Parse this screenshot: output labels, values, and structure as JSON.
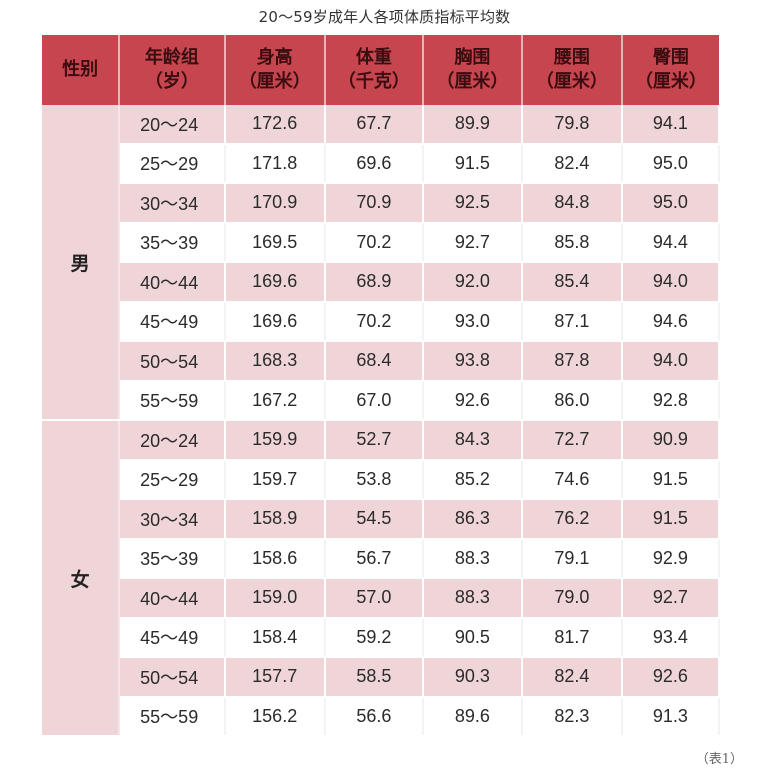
{
  "title": "20～59岁成年人各项体质指标平均数",
  "caption": "（表1）",
  "colors": {
    "header_bg": "#c6454e",
    "row_pink": "#efd4d8",
    "row_white": "#ffffff"
  },
  "headers": [
    {
      "line1": "性别",
      "line2": ""
    },
    {
      "line1": "年龄组",
      "line2": "（岁）"
    },
    {
      "line1": "身高",
      "line2": "（厘米）"
    },
    {
      "line1": "体重",
      "line2": "（千克）"
    },
    {
      "line1": "胸围",
      "line2": "（厘米）"
    },
    {
      "line1": "腰围",
      "line2": "（厘米）"
    },
    {
      "line1": "臀围",
      "line2": "（厘米）"
    }
  ],
  "groups": [
    {
      "gender": "男",
      "rows": [
        {
          "age": "20～24",
          "height": "172.6",
          "weight": "67.7",
          "chest": "89.9",
          "waist": "79.8",
          "hip": "94.1"
        },
        {
          "age": "25～29",
          "height": "171.8",
          "weight": "69.6",
          "chest": "91.5",
          "waist": "82.4",
          "hip": "95.0"
        },
        {
          "age": "30～34",
          "height": "170.9",
          "weight": "70.9",
          "chest": "92.5",
          "waist": "84.8",
          "hip": "95.0"
        },
        {
          "age": "35～39",
          "height": "169.5",
          "weight": "70.2",
          "chest": "92.7",
          "waist": "85.8",
          "hip": "94.4"
        },
        {
          "age": "40～44",
          "height": "169.6",
          "weight": "68.9",
          "chest": "92.0",
          "waist": "85.4",
          "hip": "94.0"
        },
        {
          "age": "45～49",
          "height": "169.6",
          "weight": "70.2",
          "chest": "93.0",
          "waist": "87.1",
          "hip": "94.6"
        },
        {
          "age": "50～54",
          "height": "168.3",
          "weight": "68.4",
          "chest": "93.8",
          "waist": "87.8",
          "hip": "94.0"
        },
        {
          "age": "55～59",
          "height": "167.2",
          "weight": "67.0",
          "chest": "92.6",
          "waist": "86.0",
          "hip": "92.8"
        }
      ]
    },
    {
      "gender": "女",
      "rows": [
        {
          "age": "20～24",
          "height": "159.9",
          "weight": "52.7",
          "chest": "84.3",
          "waist": "72.7",
          "hip": "90.9"
        },
        {
          "age": "25～29",
          "height": "159.7",
          "weight": "53.8",
          "chest": "85.2",
          "waist": "74.6",
          "hip": "91.5"
        },
        {
          "age": "30～34",
          "height": "158.9",
          "weight": "54.5",
          "chest": "86.3",
          "waist": "76.2",
          "hip": "91.5"
        },
        {
          "age": "35～39",
          "height": "158.6",
          "weight": "56.7",
          "chest": "88.3",
          "waist": "79.1",
          "hip": "92.9"
        },
        {
          "age": "40～44",
          "height": "159.0",
          "weight": "57.0",
          "chest": "88.3",
          "waist": "79.0",
          "hip": "92.7"
        },
        {
          "age": "45～49",
          "height": "158.4",
          "weight": "59.2",
          "chest": "90.5",
          "waist": "81.7",
          "hip": "93.4"
        },
        {
          "age": "50～54",
          "height": "157.7",
          "weight": "58.5",
          "chest": "90.3",
          "waist": "82.4",
          "hip": "92.6"
        },
        {
          "age": "55～59",
          "height": "156.2",
          "weight": "56.6",
          "chest": "89.6",
          "waist": "82.3",
          "hip": "91.3"
        }
      ]
    }
  ]
}
